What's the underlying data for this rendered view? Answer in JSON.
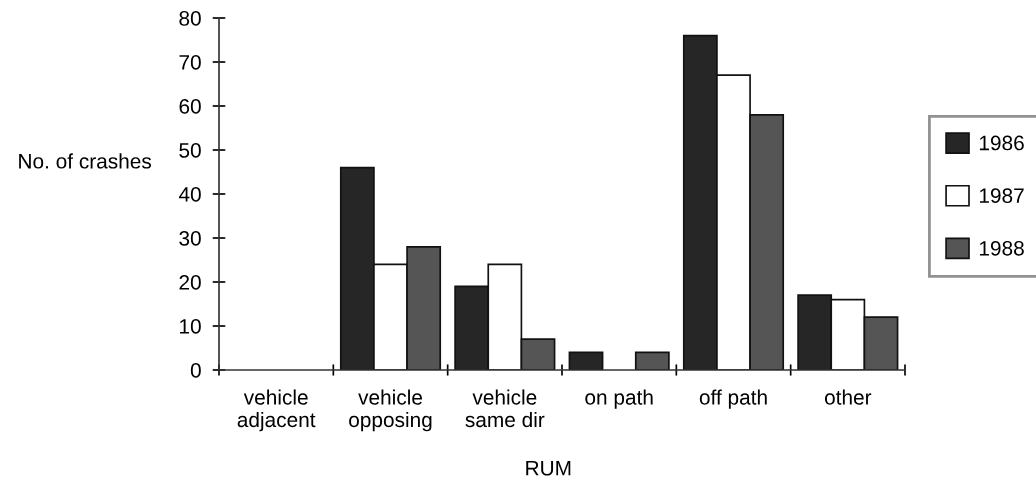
{
  "chart_data": {
    "type": "bar",
    "xlabel": "RUM",
    "ylabel": "No. of crashes",
    "categories": [
      "vehicle\nadjacent",
      "vehicle\nopposing",
      "vehicle\nsame dir",
      "on path",
      "off path",
      "other"
    ],
    "series": [
      {
        "name": "1986",
        "color": "#262626",
        "values": [
          0,
          46,
          19,
          4,
          76,
          17
        ]
      },
      {
        "name": "1987",
        "color": "#ffffff",
        "values": [
          0,
          24,
          24,
          0,
          67,
          16
        ]
      },
      {
        "name": "1988",
        "color": "#555555",
        "values": [
          0,
          28,
          7,
          4,
          58,
          12
        ]
      }
    ],
    "ylim": [
      0,
      80
    ],
    "yticks": [
      0,
      10,
      20,
      30,
      40,
      50,
      60,
      70,
      80
    ],
    "legend": "right"
  }
}
